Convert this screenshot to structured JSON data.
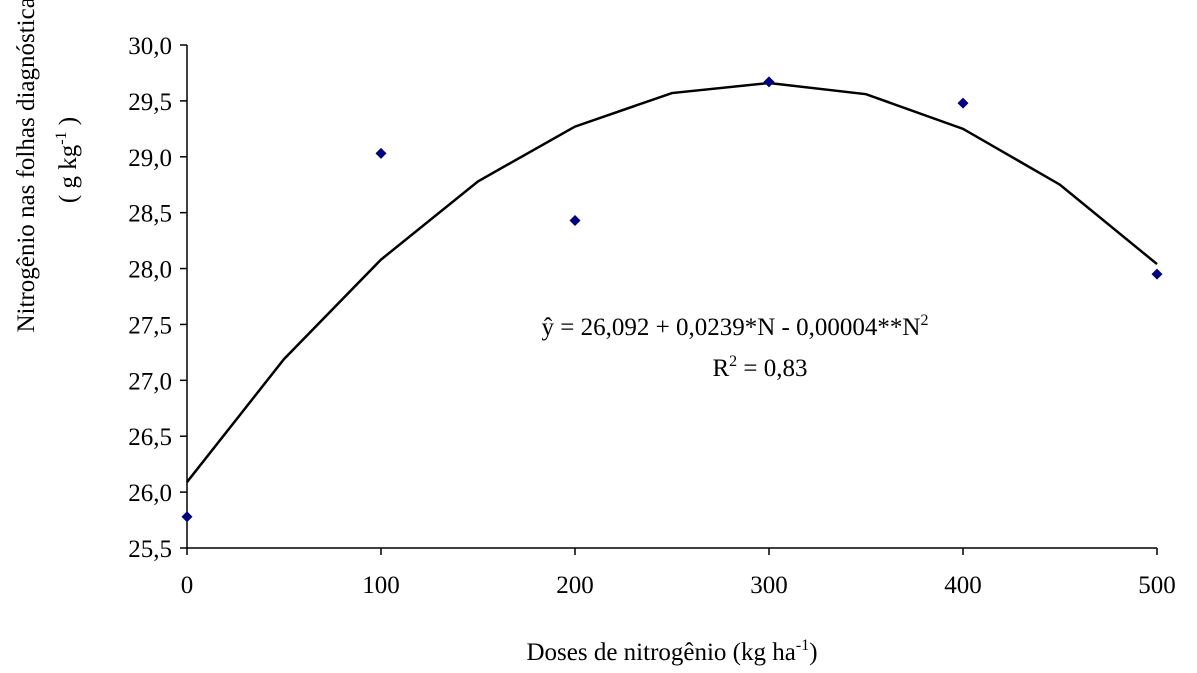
{
  "chart_data": {
    "type": "scatter",
    "x_label": "Doses de nitrogênio (kg ha",
    "x_label_sup": "-1",
    "x_label_end": ")",
    "y_label": "Nitrogênio nas folhas diagnósticas",
    "y_label_unit": "( g kg",
    "y_label_unit_sup": "-1",
    "y_label_unit_end": " )",
    "equation": "ŷ = 26,092 + 0,0239*N - 0,00004**N",
    "equation_sup": "2",
    "r2_label": "R",
    "r2_sup": "2",
    "r2_value": " = 0,83",
    "x": [
      0,
      100,
      200,
      300,
      400,
      500
    ],
    "values": [
      25.78,
      29.03,
      28.43,
      29.67,
      29.48,
      27.95
    ],
    "color": "#000080",
    "trendline": {
      "x": [
        0,
        50,
        100,
        150,
        200,
        250,
        300,
        350,
        400,
        450,
        500
      ],
      "values": [
        26.09,
        27.19,
        28.08,
        28.78,
        29.27,
        29.57,
        29.66,
        29.56,
        29.25,
        28.75,
        28.04
      ],
      "color": "#000000"
    },
    "xlim": [
      0,
      500
    ],
    "xticks": [
      0,
      100,
      200,
      300,
      400,
      500
    ],
    "ylim": [
      25.5,
      30.0
    ],
    "yticks": [
      {
        "value": 25.5,
        "label": "25,5"
      },
      {
        "value": 26.0,
        "label": "26,0"
      },
      {
        "value": 26.5,
        "label": "26,5"
      },
      {
        "value": 27.0,
        "label": "27,0"
      },
      {
        "value": 27.5,
        "label": "27,5"
      },
      {
        "value": 28.0,
        "label": "28,0"
      },
      {
        "value": 28.5,
        "label": "28,5"
      },
      {
        "value": 29.0,
        "label": "29,0"
      },
      {
        "value": 29.5,
        "label": "29,5"
      },
      {
        "value": 30.0,
        "label": "30,0"
      }
    ]
  }
}
